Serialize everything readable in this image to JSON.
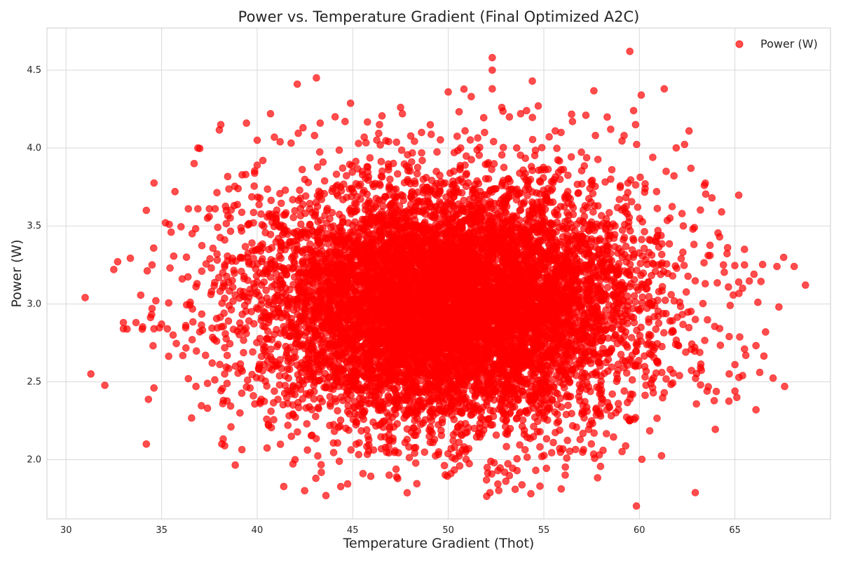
{
  "chart_data": {
    "type": "scatter",
    "title": "Power vs. Temperature Gradient (Final Optimized A2C)",
    "xlabel": "Temperature Gradient (Thot)",
    "ylabel": "Power (W)",
    "xlim": [
      29,
      70
    ],
    "ylim": [
      1.62,
      4.77
    ],
    "xticks": [
      30,
      35,
      40,
      45,
      50,
      55,
      60,
      65
    ],
    "yticks": [
      2.0,
      2.5,
      3.0,
      3.5,
      4.0,
      4.5
    ],
    "grid": true,
    "legend": {
      "position": "top-right",
      "entries": [
        "Power (W)"
      ]
    },
    "series": [
      {
        "name": "Power (W)",
        "color": "#ff0000",
        "alpha": 0.7,
        "points": [
          [
            31.0,
            3.04
          ],
          [
            31.3,
            2.55
          ],
          [
            32.5,
            3.22
          ],
          [
            32.7,
            3.27
          ],
          [
            33.0,
            2.88
          ],
          [
            33.0,
            2.84
          ],
          [
            34.2,
            3.6
          ],
          [
            34.2,
            2.1
          ],
          [
            34.5,
            3.25
          ],
          [
            34.5,
            2.97
          ],
          [
            34.6,
            2.84
          ],
          [
            34.6,
            2.46
          ],
          [
            34.7,
            3.02
          ],
          [
            35.0,
            2.87
          ],
          [
            35.2,
            3.52
          ],
          [
            35.3,
            2.84
          ],
          [
            35.4,
            3.51
          ],
          [
            35.5,
            3.46
          ],
          [
            35.6,
            2.8
          ],
          [
            35.7,
            3.72
          ],
          [
            36.3,
            3.3
          ],
          [
            36.4,
            3.61
          ],
          [
            36.4,
            2.52
          ],
          [
            36.5,
            3.01
          ],
          [
            36.6,
            3.45
          ],
          [
            36.6,
            2.77
          ],
          [
            36.7,
            3.9
          ],
          [
            36.8,
            3.11
          ],
          [
            36.8,
            2.47
          ],
          [
            36.9,
            4.0
          ],
          [
            36.9,
            3.61
          ],
          [
            37.0,
            2.82
          ],
          [
            37.1,
            3.21
          ],
          [
            37.3,
            2.67
          ],
          [
            37.4,
            3.55
          ],
          [
            37.4,
            2.33
          ],
          [
            37.5,
            3.61
          ],
          [
            37.6,
            3.23
          ],
          [
            37.8,
            3.61
          ],
          [
            37.9,
            3.32
          ],
          [
            38.1,
            4.15
          ],
          [
            38.2,
            3.2
          ],
          [
            38.2,
            2.36
          ],
          [
            38.3,
            2.09
          ],
          [
            38.3,
            3.41
          ],
          [
            38.5,
            2.89
          ],
          [
            38.7,
            3.15
          ],
          [
            38.8,
            3.63
          ],
          [
            39.0,
            3.74
          ],
          [
            39.1,
            2.3
          ],
          [
            39.4,
            3.83
          ],
          [
            39.5,
            2.51
          ],
          [
            39.7,
            2.95
          ],
          [
            39.8,
            3.52
          ],
          [
            40.0,
            4.05
          ],
          [
            40.0,
            3.89
          ],
          [
            40.3,
            3.92
          ],
          [
            40.5,
            2.26
          ],
          [
            40.6,
            2.22
          ],
          [
            40.7,
            4.22
          ],
          [
            40.9,
            4.07
          ],
          [
            41.2,
            4.04
          ],
          [
            42.1,
            4.41
          ],
          [
            42.4,
            4.13
          ],
          [
            43.1,
            4.45
          ],
          [
            43.3,
            4.16
          ],
          [
            43.6,
            1.77
          ],
          [
            44.3,
            1.99
          ],
          [
            44.6,
            4.17
          ],
          [
            45.6,
            4.07
          ],
          [
            47.3,
            1.89
          ],
          [
            47.6,
            4.22
          ],
          [
            49.2,
            2.11
          ],
          [
            49.5,
            2.05
          ],
          [
            50.0,
            4.36
          ],
          [
            50.6,
            1.96
          ],
          [
            51.2,
            4.33
          ],
          [
            52.0,
            1.87
          ],
          [
            52.3,
            4.58
          ],
          [
            52.3,
            4.5
          ],
          [
            52.3,
            4.38
          ],
          [
            52.4,
            1.98
          ],
          [
            52.6,
            1.93
          ],
          [
            52.8,
            4.26
          ],
          [
            53.2,
            4.2
          ],
          [
            53.5,
            1.81
          ],
          [
            53.6,
            1.93
          ],
          [
            54.1,
            4.24
          ],
          [
            54.4,
            4.43
          ],
          [
            54.8,
            1.83
          ],
          [
            54.9,
            2.02
          ],
          [
            55.6,
            4.11
          ],
          [
            56.2,
            2.01
          ],
          [
            56.5,
            4.17
          ],
          [
            57.2,
            4.21
          ],
          [
            58.1,
            2.06
          ],
          [
            58.5,
            4.12
          ],
          [
            59.2,
            4.08
          ],
          [
            59.5,
            4.62
          ],
          [
            59.7,
            4.24
          ],
          [
            59.8,
            4.15
          ],
          [
            60.1,
            4.34
          ],
          [
            60.3,
            3.77
          ],
          [
            60.7,
            3.94
          ],
          [
            61.3,
            4.38
          ],
          [
            61.4,
            3.85
          ],
          [
            61.6,
            3.55
          ],
          [
            62.6,
            4.11
          ],
          [
            62.7,
            3.87
          ],
          [
            63.4,
            3.76
          ],
          [
            63.6,
            3.31
          ],
          [
            63.8,
            3.68
          ],
          [
            64.2,
            3.43
          ],
          [
            64.3,
            3.59
          ],
          [
            64.4,
            3.25
          ],
          [
            64.7,
            2.55
          ],
          [
            65.0,
            2.61
          ],
          [
            65.0,
            2.44
          ],
          [
            65.1,
            2.4
          ],
          [
            65.2,
            3.14
          ],
          [
            65.4,
            2.54
          ],
          [
            65.4,
            3.1
          ],
          [
            65.5,
            2.71
          ],
          [
            65.5,
            3.35
          ],
          [
            65.5,
            3.25
          ],
          [
            66.0,
            3.19
          ],
          [
            66.1,
            2.32
          ],
          [
            66.2,
            3.01
          ],
          [
            66.3,
            2.56
          ],
          [
            67.2,
            3.24
          ],
          [
            67.3,
            2.98
          ],
          [
            67.6,
            2.47
          ],
          [
            68.1,
            3.24
          ],
          [
            63.7,
            3.31
          ],
          [
            63.2,
            2.48
          ],
          [
            62.9,
            2.72
          ],
          [
            62.1,
            2.54
          ],
          [
            61.3,
            2.43
          ],
          [
            60.6,
            2.49
          ],
          [
            59.8,
            2.27
          ],
          [
            59.5,
            2.25
          ],
          [
            58.9,
            2.36
          ],
          [
            57.5,
            2.25
          ],
          [
            56.9,
            2.13
          ],
          [
            55.5,
            2.11
          ],
          [
            54.8,
            2.18
          ],
          [
            51.6,
            2.17
          ],
          [
            50.9,
            2.05
          ],
          [
            46.5,
            2.07
          ],
          [
            45.8,
            2.15
          ],
          [
            43.8,
            2.22
          ],
          [
            42.6,
            2.23
          ],
          [
            41.6,
            2.36
          ],
          [
            40.9,
            2.44
          ],
          [
            39.8,
            2.41
          ],
          [
            43.0,
            4.08
          ],
          [
            46.4,
            4.15
          ],
          [
            48.6,
            4.1
          ],
          [
            51.9,
            4.1
          ],
          [
            55.9,
            4.1
          ],
          [
            57.7,
            4.08
          ],
          [
            60.9,
            3.72
          ],
          [
            62.3,
            3.5
          ],
          [
            62.8,
            3.48
          ],
          [
            63.2,
            2.59
          ],
          [
            64.7,
            2.79
          ],
          [
            61.9,
            2.74
          ],
          [
            38.3,
            2.55
          ],
          [
            37.4,
            2.49
          ]
        ],
        "cluster": {
          "count": 9000,
          "x_mean": 50.0,
          "x_sd": 5.0,
          "y_mean": 3.0,
          "y_sd": 0.39
        }
      }
    ]
  }
}
